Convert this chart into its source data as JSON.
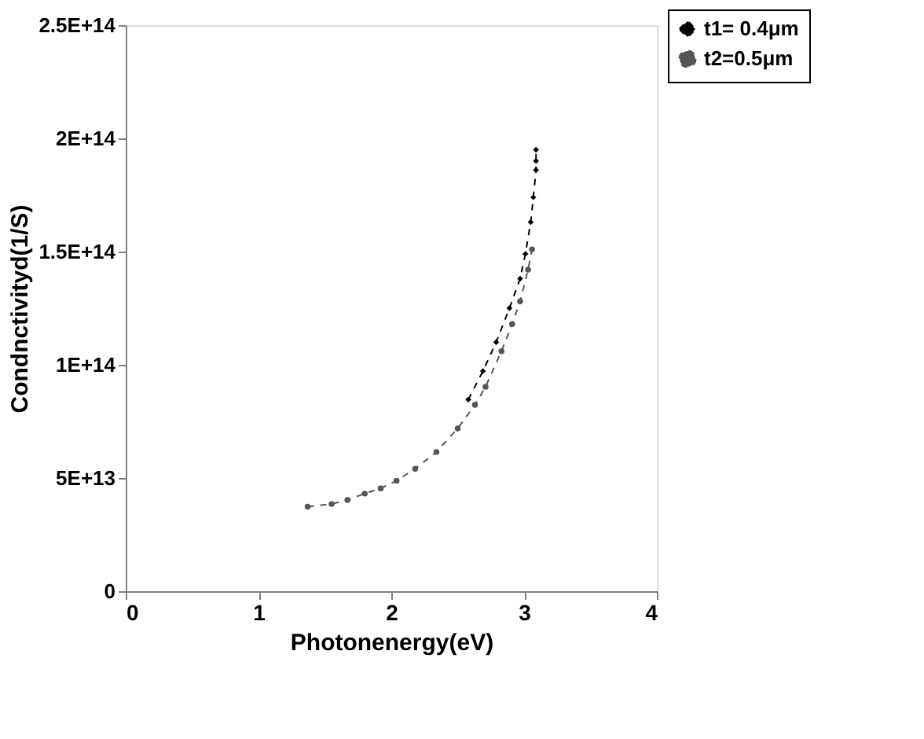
{
  "chart_data": {
    "type": "line",
    "xlabel": "Photonenergy(eV)",
    "ylabel": "Condnctivityd(1/S)",
    "xlim": [
      0,
      4
    ],
    "xticks": [
      0,
      1,
      2,
      3,
      4
    ],
    "ylim": [
      0,
      250000000000000
    ],
    "yticks": [
      {
        "value": 0,
        "label": "0"
      },
      {
        "value": 50000000000000,
        "label": "5E+13"
      },
      {
        "value": 100000000000000,
        "label": "1E+14"
      },
      {
        "value": 150000000000000,
        "label": "1.5E+14"
      },
      {
        "value": 200000000000000,
        "label": "2E+14"
      },
      {
        "value": 250000000000000,
        "label": "2.5E+14"
      }
    ],
    "grid": false,
    "legend": "top right",
    "series": [
      {
        "name": "t1= 0.4μm",
        "color": "#000000",
        "marker": "diamond",
        "line_style": "dashed",
        "x": [
          2.58,
          2.69,
          2.79,
          2.89,
          2.97,
          3.01,
          3.05,
          3.07,
          3.09,
          3.09,
          3.09
        ],
        "values": [
          84600000000000,
          97200000000000,
          110000000000000,
          125000000000000,
          138000000000000,
          149000000000000,
          163000000000000,
          174000000000000,
          186000000000000,
          190000000000000,
          195000000000000
        ]
      },
      {
        "name": "t2=0.5μm",
        "color": "#555555",
        "marker": "circle",
        "line_style": "dashed",
        "x": [
          1.37,
          1.55,
          1.67,
          1.8,
          1.92,
          2.04,
          2.18,
          2.34,
          2.5,
          2.63,
          2.71,
          2.83,
          2.91,
          2.97,
          3.03,
          3.06
        ],
        "values": [
          37300000000000,
          38500000000000,
          40300000000000,
          43100000000000,
          45400000000000,
          48800000000000,
          54100000000000,
          61500000000000,
          71900000000000,
          82300000000000,
          90300000000000,
          106000000000000,
          118000000000000,
          128000000000000,
          142000000000000,
          151000000000000
        ]
      }
    ]
  }
}
